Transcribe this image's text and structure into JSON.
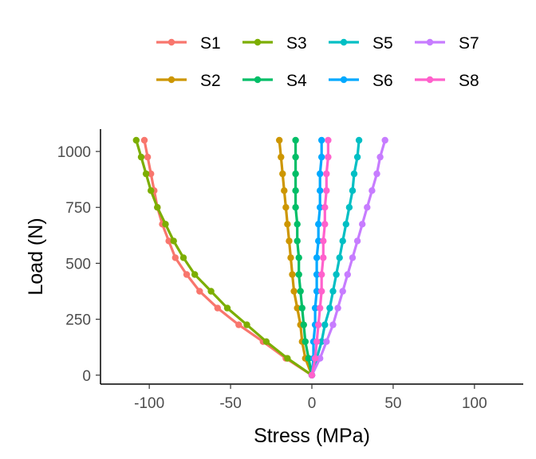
{
  "chart_data": {
    "type": "line",
    "xlabel": "Stress (MPa)",
    "ylabel": "Load (N)",
    "xlim": [
      -130,
      130
    ],
    "ylim": [
      -40,
      1100
    ],
    "x_ticks": [
      -100,
      -50,
      0,
      50,
      100
    ],
    "y_ticks": [
      0,
      250,
      500,
      750,
      1000
    ],
    "grid": false,
    "legend_position": "top",
    "series": [
      {
        "name": "S1",
        "color": "#F8766D",
        "x": [
          0,
          -16,
          -30,
          -45,
          -58,
          -69,
          -77,
          -84,
          -88,
          -92,
          -95,
          -97,
          -99,
          -101,
          -103
        ],
        "y": [
          0,
          75,
          150,
          225,
          300,
          375,
          450,
          525,
          600,
          675,
          750,
          825,
          900,
          975,
          1050
        ]
      },
      {
        "name": "S2",
        "color": "#CD9600",
        "x": [
          0,
          -4,
          -6,
          -7,
          -9,
          -11,
          -12,
          -13,
          -14,
          -15,
          -16,
          -17,
          -18,
          -19,
          -20
        ],
        "y": [
          0,
          75,
          150,
          225,
          300,
          375,
          450,
          525,
          600,
          675,
          750,
          825,
          900,
          975,
          1050
        ]
      },
      {
        "name": "S3",
        "color": "#7CAE00",
        "x": [
          0,
          -15,
          -28,
          -40,
          -52,
          -62,
          -72,
          -79,
          -85,
          -90,
          -95,
          -99,
          -102,
          -105,
          -108
        ],
        "y": [
          0,
          75,
          150,
          225,
          300,
          375,
          450,
          525,
          600,
          675,
          750,
          825,
          900,
          975,
          1050
        ]
      },
      {
        "name": "S4",
        "color": "#00BE67",
        "x": [
          0,
          -2,
          -4,
          -5,
          -6,
          -7,
          -8,
          -8,
          -9,
          -9,
          -10,
          -10,
          -10,
          -10,
          -10
        ],
        "y": [
          0,
          75,
          150,
          225,
          300,
          375,
          450,
          525,
          600,
          675,
          750,
          825,
          900,
          975,
          1050
        ]
      },
      {
        "name": "S5",
        "color": "#00BFC4",
        "x": [
          0,
          3,
          6,
          8,
          11,
          13,
          15,
          17,
          19,
          21,
          23,
          25,
          26,
          28,
          29
        ],
        "y": [
          0,
          75,
          150,
          225,
          300,
          375,
          450,
          525,
          600,
          675,
          750,
          825,
          900,
          975,
          1050
        ]
      },
      {
        "name": "S6",
        "color": "#00A9FF",
        "x": [
          0,
          1,
          1,
          2,
          2,
          3,
          3,
          3,
          4,
          4,
          5,
          5,
          5,
          6,
          6
        ],
        "y": [
          0,
          75,
          150,
          225,
          300,
          375,
          450,
          525,
          600,
          675,
          750,
          825,
          900,
          975,
          1050
        ]
      },
      {
        "name": "S7",
        "color": "#C77CFF",
        "x": [
          0,
          5,
          9,
          13,
          16,
          19,
          22,
          25,
          28,
          31,
          34,
          37,
          40,
          42,
          45
        ],
        "y": [
          0,
          75,
          150,
          225,
          300,
          375,
          450,
          525,
          600,
          675,
          750,
          825,
          900,
          975,
          1050
        ]
      },
      {
        "name": "S8",
        "color": "#FF61CC",
        "x": [
          0,
          2,
          3,
          4,
          5,
          6,
          6,
          7,
          7,
          8,
          8,
          9,
          9,
          10,
          10
        ],
        "y": [
          0,
          75,
          150,
          225,
          300,
          375,
          450,
          525,
          600,
          675,
          750,
          825,
          900,
          975,
          1050
        ]
      }
    ]
  }
}
